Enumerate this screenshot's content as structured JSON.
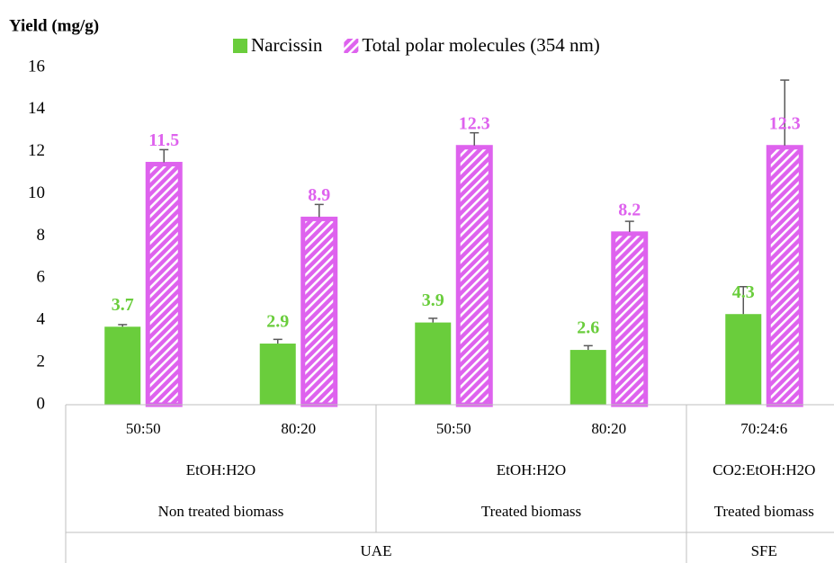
{
  "chart_data": {
    "type": "bar",
    "y_axis_label": "Yield (mg/g)",
    "categories": [
      "50:50",
      "80:20",
      "50:50",
      "80:20",
      "70:24:6"
    ],
    "category_groups": [
      [
        {
          "label": "EtOH:H2O",
          "span": 2
        },
        {
          "label": "EtOH:H2O",
          "span": 2
        },
        {
          "label": "CO2:EtOH:H2O",
          "span": 1
        }
      ],
      [
        {
          "label": "Non treated biomass",
          "span": 2
        },
        {
          "label": "Treated biomass",
          "span": 2
        },
        {
          "label": "Treated biomass",
          "span": 1
        }
      ],
      [
        {
          "label": "UAE",
          "span": 4
        },
        {
          "label": "SFE",
          "span": 1
        }
      ]
    ],
    "series": [
      {
        "name": "Narcissin",
        "color": "#6acd3c",
        "pattern": "solid",
        "values": [
          3.7,
          2.9,
          3.9,
          2.6,
          4.3
        ],
        "errors": [
          0.1,
          0.2,
          0.2,
          0.2,
          1.3
        ]
      },
      {
        "name": "Total polar molecules (354 nm)",
        "color": "#de62ee",
        "pattern": "hatched",
        "values": [
          11.5,
          8.9,
          12.3,
          8.2,
          12.3
        ],
        "errors": [
          0.6,
          0.6,
          0.6,
          0.5,
          3.1
        ]
      }
    ],
    "ylim": [
      0,
      16
    ],
    "yticks": [
      0,
      2,
      4,
      6,
      8,
      10,
      12,
      14,
      16
    ],
    "grid": false,
    "legend": "top"
  }
}
